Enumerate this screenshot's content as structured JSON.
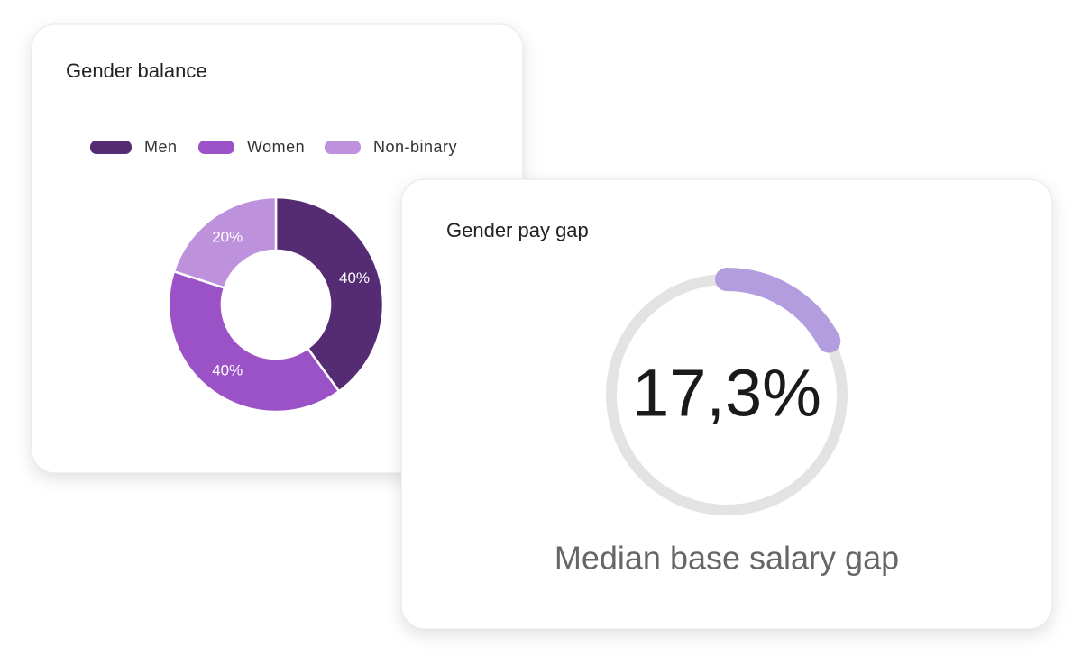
{
  "chart_data": [
    {
      "type": "pie",
      "title": "Gender balance",
      "categories": [
        "Men",
        "Women",
        "Non-binary"
      ],
      "values": [
        40,
        40,
        20
      ],
      "value_labels": [
        "40%",
        "40%",
        "20%"
      ],
      "colors": [
        "#552b73",
        "#9a52c6",
        "#bd91dc"
      ]
    },
    {
      "type": "gauge",
      "title": "Gender pay gap",
      "value": 17.3,
      "value_label": "17,3%",
      "subtitle": "Median base salary gap",
      "ylim": [
        0,
        100
      ],
      "color": "#b39ddf"
    }
  ]
}
